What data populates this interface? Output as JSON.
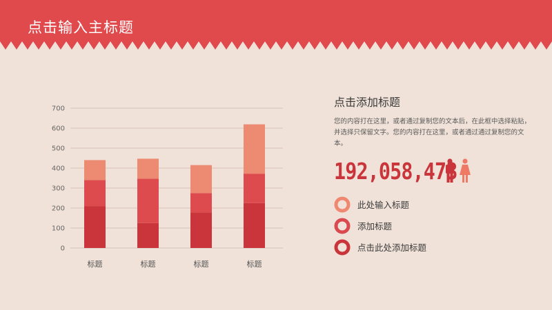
{
  "header": {
    "title": "点击输入主标题",
    "color": "#e04a4d"
  },
  "panel": {
    "title": "点击添加标题",
    "body": "您的内容打在这里，或者通过复制您的文本后，在此框中选择粘贴，并选择只保留文字。您的内容打在这里，或者通过通过复制您的文本。"
  },
  "stat": {
    "value": "192,058,473",
    "icons": [
      "male-person-icon",
      "female-person-icon"
    ],
    "icon_colors": [
      "#c9353a",
      "#ee7a66"
    ]
  },
  "legend": [
    {
      "label": "此处输入标题",
      "color": "#ee8870"
    },
    {
      "label": "添加标题",
      "color": "#d94a4f"
    },
    {
      "label": "点击此处添加标题",
      "color": "#c9353a"
    }
  ],
  "chart_data": {
    "type": "bar",
    "stacked": true,
    "categories": [
      "标题",
      "标题",
      "标题",
      "标题"
    ],
    "series": [
      {
        "values": [
          210,
          125,
          178,
          225
        ],
        "color": "#c9353a"
      },
      {
        "values": [
          130,
          222,
          97,
          147
        ],
        "color": "#dd4b4e"
      },
      {
        "values": [
          100,
          100,
          140,
          247
        ],
        "color": "#ec8a72"
      }
    ],
    "ylim": [
      0,
      700
    ],
    "yticks": [
      "0",
      "100",
      "200",
      "300",
      "400",
      "500",
      "600",
      "700"
    ],
    "grid": true
  }
}
